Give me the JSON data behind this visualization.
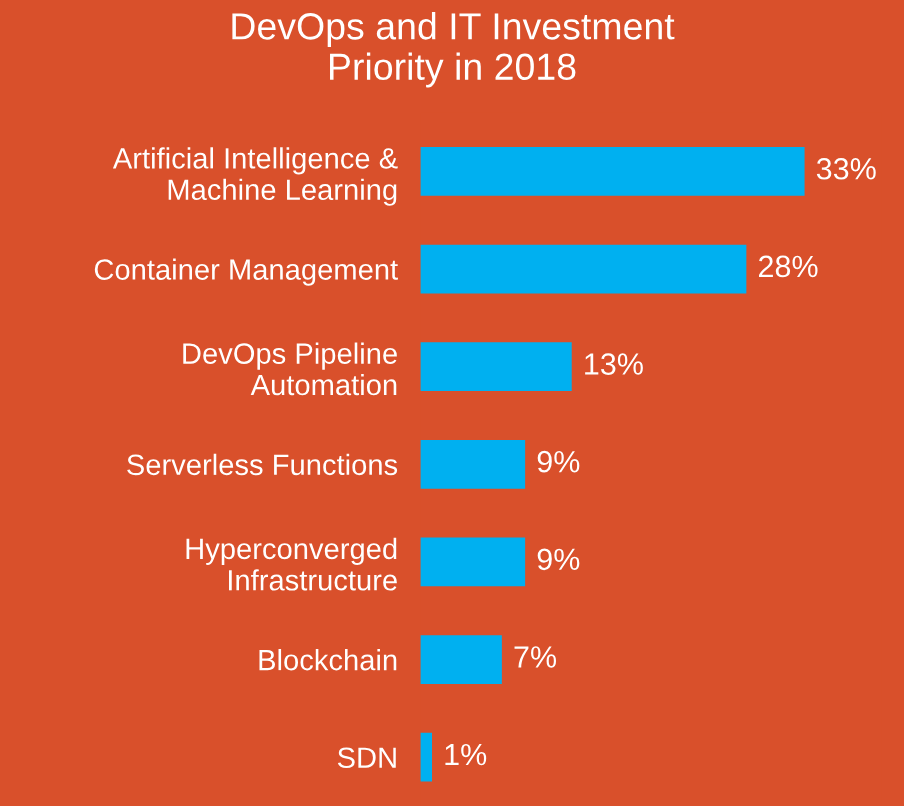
{
  "chart_data": {
    "type": "bar",
    "orientation": "horizontal",
    "title": "DevOps and IT Investment\nPriority in 2018",
    "categories": [
      "Artificial Intelligence &\nMachine Learning",
      "Container Management",
      "DevOps Pipeline\nAutomation",
      "Serverless Functions",
      "Hyperconverged\nInfrastructure",
      "Blockchain",
      "SDN"
    ],
    "values": [
      33,
      28,
      13,
      9,
      9,
      7,
      1
    ],
    "value_labels": [
      "33%",
      "28%",
      "13%",
      "9%",
      "9%",
      "7%",
      "1%"
    ],
    "color": "#00b0f0",
    "grid": false,
    "legend": false
  }
}
